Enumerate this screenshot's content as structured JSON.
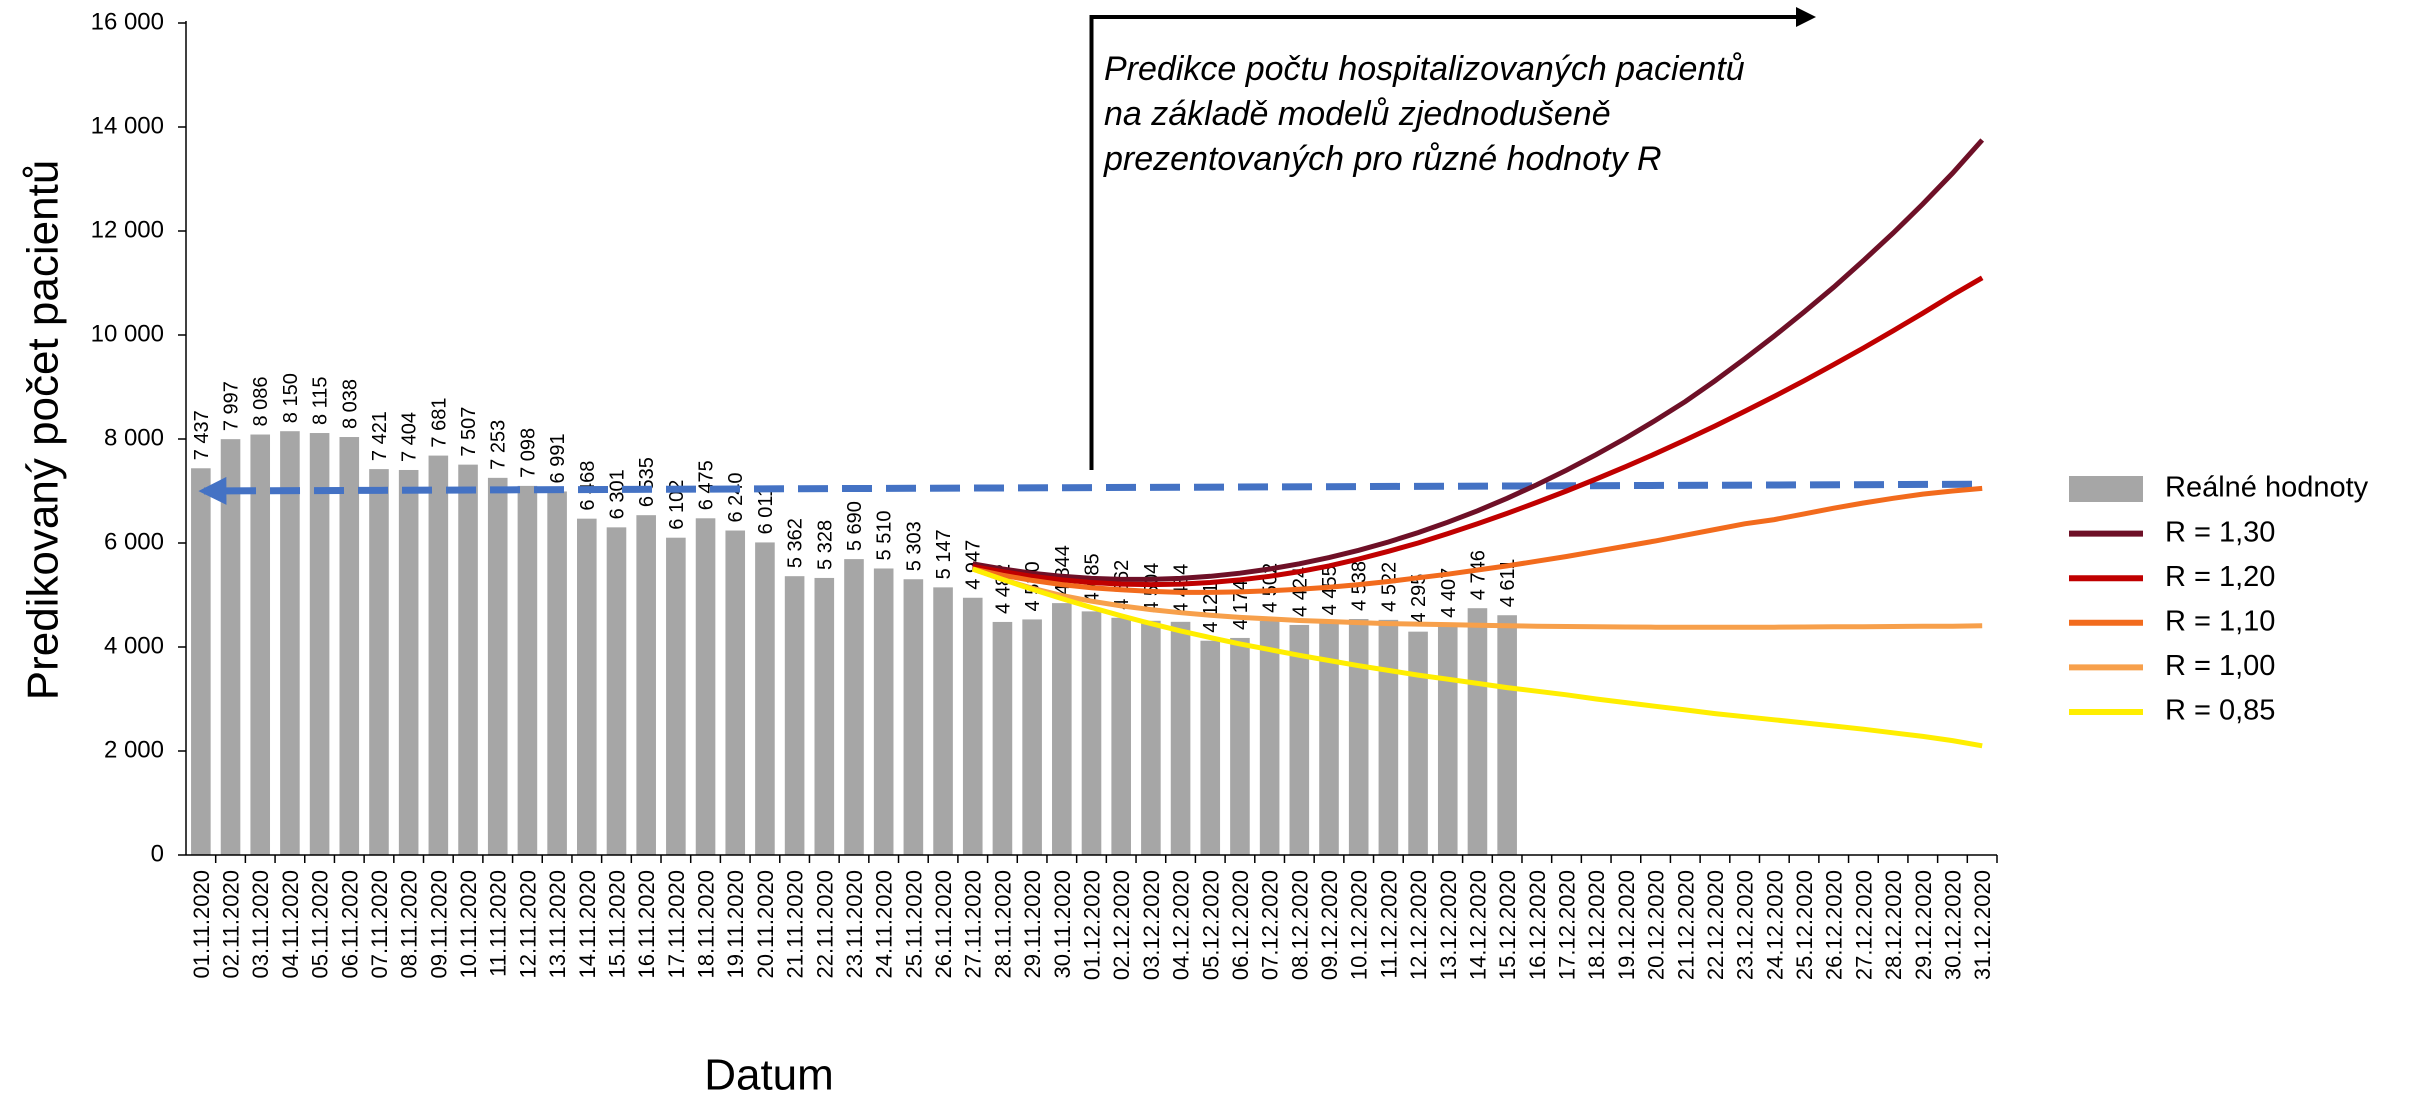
{
  "chart_data": {
    "type": "bar-line",
    "y_axis_label": "Predikovaný počet pacientů",
    "x_axis_label": "Datum",
    "annotation": [
      "Predikce počtu hospitalizovaných pacientů",
      "na základě modelů zjednodušeně",
      "prezentovaných pro různé hodnoty R"
    ],
    "ylim": [
      0,
      16000
    ],
    "yticks": [
      0,
      {
        "value": 2000,
        "label": "2 000"
      },
      {
        "value": 4000,
        "label": "4 000"
      },
      {
        "value": 6000,
        "label": "6 000"
      },
      {
        "value": 8000,
        "label": "8 000"
      },
      {
        "value": 10000,
        "label": "10 000"
      },
      {
        "value": 12000,
        "label": "12 000"
      },
      {
        "value": 14000,
        "label": "14 000"
      },
      {
        "value": 16000,
        "label": "16 000"
      }
    ],
    "categories": [
      "01.11.2020",
      "02.11.2020",
      "03.11.2020",
      "04.11.2020",
      "05.11.2020",
      "06.11.2020",
      "07.11.2020",
      "08.11.2020",
      "09.11.2020",
      "10.11.2020",
      "11.11.2020",
      "12.11.2020",
      "13.11.2020",
      "14.11.2020",
      "15.11.2020",
      "16.11.2020",
      "17.11.2020",
      "18.11.2020",
      "19.11.2020",
      "20.11.2020",
      "21.11.2020",
      "22.11.2020",
      "23.11.2020",
      "24.11.2020",
      "25.11.2020",
      "26.11.2020",
      "27.11.2020",
      "28.11.2020",
      "29.11.2020",
      "30.11.2020",
      "01.12.2020",
      "02.12.2020",
      "03.12.2020",
      "04.12.2020",
      "05.12.2020",
      "06.12.2020",
      "07.12.2020",
      "08.12.2020",
      "09.12.2020",
      "10.12.2020",
      "11.12.2020",
      "12.12.2020",
      "13.12.2020",
      "14.12.2020",
      "15.12.2020",
      "16.12.2020",
      "17.12.2020",
      "18.12.2020",
      "19.12.2020",
      "20.12.2020",
      "21.12.2020",
      "22.12.2020",
      "23.12.2020",
      "24.12.2020",
      "25.12.2020",
      "26.12.2020",
      "27.12.2020",
      "28.12.2020",
      "29.12.2020",
      "30.12.2020",
      "31.12.2020"
    ],
    "bars": {
      "name": "Reálné hodnoty",
      "color": "#a6a6a6",
      "values": [
        7437,
        7997,
        8086,
        8150,
        8115,
        8038,
        7421,
        7404,
        7681,
        7507,
        7253,
        7098,
        6991,
        6468,
        6301,
        6535,
        6102,
        6475,
        6240,
        6011,
        5362,
        5328,
        5690,
        5510,
        5303,
        5147,
        4947,
        4482,
        4530,
        4844,
        4685,
        4562,
        4504,
        4484,
        4121,
        4174,
        4502,
        4424,
        4455,
        4538,
        4522,
        4295,
        4407,
        4746,
        4611,
        null,
        null,
        null,
        null,
        null,
        null,
        null,
        null,
        null,
        null,
        null,
        null,
        null,
        null,
        null,
        null
      ],
      "value_labels": [
        "7 437",
        "7 997",
        "8 086",
        "8 150",
        "8 115",
        "8 038",
        "7 421",
        "7 404",
        "7 681",
        "7 507",
        "7 253",
        "7 098",
        "6 991",
        "6 468",
        "6 301",
        "6 535",
        "6 102",
        "6 475",
        "6 240",
        "6 011",
        "5 362",
        "5 328",
        "5 690",
        "5 510",
        "5 303",
        "5 147",
        "4 947",
        "4 482",
        "4 530",
        "4 844",
        "4 685",
        "4 562",
        "4 504",
        "4 484",
        "4 121",
        "4 174",
        "4 502",
        "4 424",
        "4 455",
        "4 538",
        "4 522",
        "4 295",
        "4 407",
        "4 746",
        "4 611",
        null,
        null,
        null,
        null,
        null,
        null,
        null,
        null,
        null,
        null,
        null,
        null,
        null,
        null,
        null,
        null
      ]
    },
    "series": [
      {
        "name": "R = 1,30",
        "color": "#6e1027",
        "values": [
          null,
          null,
          null,
          null,
          null,
          null,
          null,
          null,
          null,
          null,
          null,
          null,
          null,
          null,
          null,
          null,
          null,
          null,
          null,
          null,
          null,
          null,
          null,
          null,
          null,
          null,
          5600,
          5500,
          5420,
          5360,
          5320,
          5300,
          5300,
          5320,
          5360,
          5420,
          5500,
          5600,
          5720,
          5860,
          6020,
          6200,
          6400,
          6620,
          6860,
          7120,
          7400,
          7700,
          8020,
          8360,
          8720,
          9120,
          9540,
          9980,
          10440,
          10920,
          11430,
          11960,
          12520,
          13110,
          13750
        ]
      },
      {
        "name": "R = 1,20",
        "color": "#c00000",
        "values": [
          null,
          null,
          null,
          null,
          null,
          null,
          null,
          null,
          null,
          null,
          null,
          null,
          null,
          null,
          null,
          null,
          null,
          null,
          null,
          null,
          null,
          null,
          null,
          null,
          null,
          null,
          5550,
          5450,
          5360,
          5290,
          5240,
          5210,
          5200,
          5210,
          5240,
          5290,
          5360,
          5450,
          5560,
          5690,
          5840,
          6000,
          6180,
          6370,
          6570,
          6780,
          7000,
          7230,
          7470,
          7720,
          7980,
          8250,
          8530,
          8820,
          9120,
          9430,
          9750,
          10080,
          10420,
          10770,
          11100
        ]
      },
      {
        "name": "R = 1,10",
        "color": "#f26b1d",
        "values": [
          null,
          null,
          null,
          null,
          null,
          null,
          null,
          null,
          null,
          null,
          null,
          null,
          null,
          null,
          null,
          null,
          null,
          null,
          null,
          null,
          null,
          null,
          null,
          null,
          null,
          null,
          5500,
          5380,
          5280,
          5200,
          5140,
          5100,
          5070,
          5050,
          5050,
          5060,
          5080,
          5110,
          5150,
          5200,
          5260,
          5330,
          5400,
          5480,
          5560,
          5650,
          5740,
          5840,
          5940,
          6040,
          6150,
          6260,
          6370,
          6450,
          6560,
          6670,
          6770,
          6860,
          6940,
          7000,
          7050
        ]
      },
      {
        "name": "R = 1,00",
        "color": "#f7a04b",
        "values": [
          null,
          null,
          null,
          null,
          null,
          null,
          null,
          null,
          null,
          null,
          null,
          null,
          null,
          null,
          null,
          null,
          null,
          null,
          null,
          null,
          null,
          null,
          null,
          null,
          null,
          null,
          5500,
          5300,
          5130,
          4990,
          4880,
          4790,
          4720,
          4660,
          4610,
          4570,
          4540,
          4510,
          4490,
          4470,
          4450,
          4440,
          4430,
          4420,
          4410,
          4400,
          4395,
          4390,
          4385,
          4380,
          4380,
          4380,
          4380,
          4380,
          4385,
          4390,
          4390,
          4395,
          4400,
          4400,
          4410
        ]
      },
      {
        "name": "R = 0,85",
        "color": "#ffee00",
        "values": [
          null,
          null,
          null,
          null,
          null,
          null,
          null,
          null,
          null,
          null,
          null,
          null,
          null,
          null,
          null,
          null,
          null,
          null,
          null,
          null,
          null,
          null,
          null,
          null,
          null,
          null,
          5500,
          5300,
          5110,
          4930,
          4760,
          4600,
          4450,
          4310,
          4180,
          4060,
          3950,
          3840,
          3740,
          3640,
          3550,
          3460,
          3380,
          3300,
          3220,
          3150,
          3080,
          3000,
          2930,
          2860,
          2790,
          2720,
          2660,
          2600,
          2540,
          2480,
          2420,
          2350,
          2280,
          2200,
          2100
        ]
      }
    ],
    "trend_arrow": {
      "color": "#4472c4",
      "values": [
        7000,
        7130
      ]
    }
  }
}
